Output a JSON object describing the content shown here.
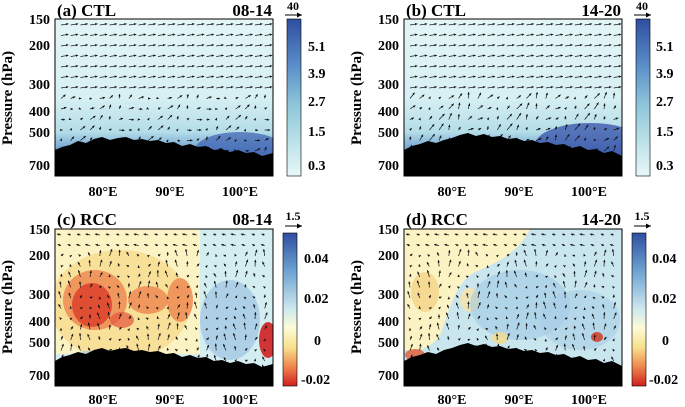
{
  "figure": {
    "y_axis_label": "Pressure (hPa)",
    "x_ticks": [
      "80°E",
      "90°E",
      "100°E"
    ],
    "y_ticks": [
      "150",
      "200",
      "300",
      "400",
      "500",
      "700"
    ]
  },
  "panels": [
    {
      "label": "(a) CTL",
      "period": "08-14",
      "ref_vector": "40",
      "colorbar": [
        "5.1",
        "3.9",
        "2.7",
        "1.5",
        "0.3"
      ]
    },
    {
      "label": "(b) CTL",
      "period": "14-20",
      "ref_vector": "40",
      "colorbar": [
        "5.1",
        "3.9",
        "2.7",
        "1.5",
        "0.3"
      ]
    },
    {
      "label": "(c) RCC",
      "period": "08-14",
      "ref_vector": "1.5",
      "colorbar": [
        "0.04",
        "0.02",
        "0",
        "-0.02"
      ]
    },
    {
      "label": "(d) RCC",
      "period": "14-20",
      "ref_vector": "1.5",
      "colorbar": [
        "0.04",
        "0.02",
        "0",
        "-0.02"
      ]
    }
  ],
  "chart_data": [
    {
      "type": "heatmap",
      "title": "(a) CTL 08-14",
      "xlabel": "",
      "ylabel": "Pressure (hPa)",
      "xlim": [
        73,
        105
      ],
      "ylim": [
        800,
        150
      ],
      "x_ticks": [
        80,
        90,
        100
      ],
      "y_ticks": [
        150,
        200,
        300,
        400,
        500,
        700
      ],
      "colorbar_levels": [
        0.3,
        1.5,
        2.7,
        3.9,
        5.1
      ],
      "reference_vector": 40,
      "field_description": "shading increases toward the surface; strongest near 100°E below 500 hPa; vectors dominantly eastward aloft"
    },
    {
      "type": "heatmap",
      "title": "(b) CTL 14-20",
      "xlabel": "",
      "ylabel": "Pressure (hPa)",
      "xlim": [
        73,
        105
      ],
      "ylim": [
        800,
        150
      ],
      "x_ticks": [
        80,
        90,
        100
      ],
      "y_ticks": [
        150,
        200,
        300,
        400,
        500,
        700
      ],
      "colorbar_levels": [
        0.3,
        1.5,
        2.7,
        3.9,
        5.1
      ],
      "reference_vector": 40,
      "field_description": "similar to (a) with stronger near-surface values east of 95°E"
    },
    {
      "type": "heatmap",
      "title": "(c) RCC 08-14",
      "xlabel": "",
      "ylabel": "Pressure (hPa)",
      "xlim": [
        73,
        105
      ],
      "ylim": [
        800,
        150
      ],
      "x_ticks": [
        80,
        90,
        100
      ],
      "y_ticks": [
        150,
        200,
        300,
        400,
        500,
        700
      ],
      "colorbar_levels": [
        -0.02,
        0,
        0.02,
        0.04
      ],
      "reference_vector": 1.5,
      "field_description": "negative anomalies (red) around 76-88°E between 300-450 hPa; weak positive (blue) east of 93°E"
    },
    {
      "type": "heatmap",
      "title": "(d) RCC 14-20",
      "xlabel": "",
      "ylabel": "Pressure (hPa)",
      "xlim": [
        73,
        105
      ],
      "ylim": [
        800,
        150
      ],
      "x_ticks": [
        80,
        90,
        100
      ],
      "y_ticks": [
        150,
        200,
        300,
        400,
        500,
        700
      ],
      "colorbar_levels": [
        -0.02,
        0,
        0.02,
        0.04
      ],
      "reference_vector": 1.5,
      "field_description": "weak negative anomalies west of 85°E aloft; positive anomalies across most of domain"
    }
  ]
}
